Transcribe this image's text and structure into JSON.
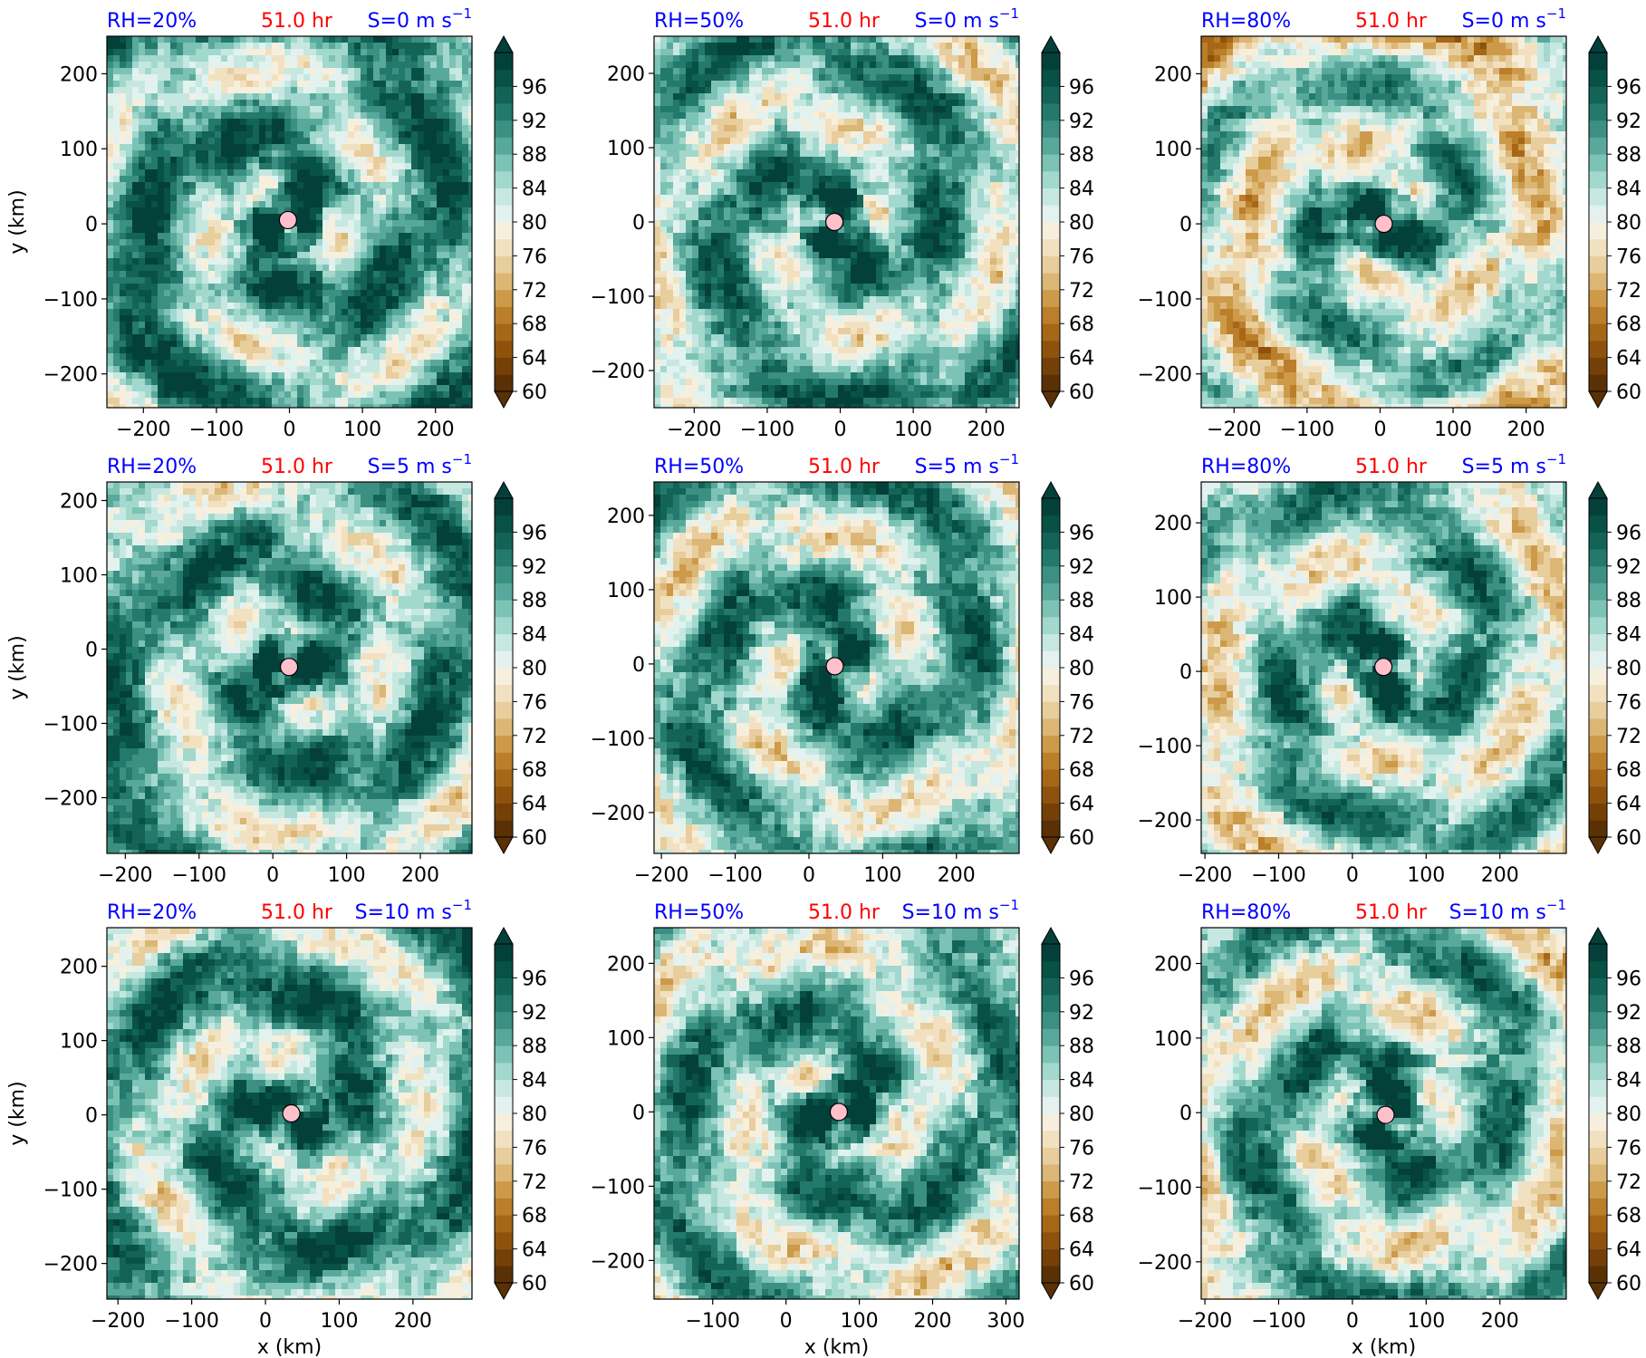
{
  "figure": {
    "cbar_ticks": [
      "96",
      "92",
      "88",
      "84",
      "80",
      "76",
      "72",
      "68",
      "64",
      "60"
    ],
    "ylabel": "y (km)",
    "xlabel": "x (km)"
  },
  "chart_data": [
    {
      "type": "heatmap",
      "rh_label": "RH=20%",
      "time_label": "51.0 hr",
      "shear_label": "S=0 m s",
      "shear_exp": "−1",
      "xlim": [
        -250,
        250
      ],
      "ylim": [
        -245,
        250
      ],
      "x_ticks": [
        -200,
        -100,
        0,
        100,
        200
      ],
      "y_ticks": [
        -200,
        -100,
        0,
        100,
        200
      ],
      "x_tick_labels": [
        "−200",
        "−100",
        "0",
        "100",
        "200"
      ],
      "y_tick_labels": [
        "−200",
        "−100",
        "0",
        "100",
        "200"
      ],
      "center": [
        -2,
        5
      ],
      "colorbar_range": [
        60,
        100
      ],
      "colorbar_step": 2
    },
    {
      "type": "heatmap",
      "rh_label": "RH=50%",
      "time_label": "51.0 hr",
      "shear_label": "S=0 m s",
      "shear_exp": "−1",
      "xlim": [
        -255,
        245
      ],
      "ylim": [
        -250,
        250
      ],
      "x_ticks": [
        -200,
        -100,
        0,
        100,
        200
      ],
      "y_ticks": [
        -200,
        -100,
        0,
        100,
        200
      ],
      "x_tick_labels": [
        "−200",
        "−100",
        "0",
        "100",
        "200"
      ],
      "y_tick_labels": [
        "−200",
        "−100",
        "0",
        "100",
        "200"
      ],
      "center": [
        -8,
        0
      ],
      "colorbar_range": [
        60,
        100
      ],
      "colorbar_step": 2
    },
    {
      "type": "heatmap",
      "rh_label": "RH=80%",
      "time_label": "51.0 hr",
      "shear_label": "S=0 m s",
      "shear_exp": "−1",
      "xlim": [
        -245,
        255
      ],
      "ylim": [
        -245,
        250
      ],
      "x_ticks": [
        -200,
        -100,
        0,
        100,
        200
      ],
      "y_ticks": [
        -200,
        -100,
        0,
        100,
        200
      ],
      "x_tick_labels": [
        "−200",
        "−100",
        "0",
        "100",
        "200"
      ],
      "y_tick_labels": [
        "−200",
        "−100",
        "0",
        "100",
        "200"
      ],
      "center": [
        5,
        0
      ],
      "colorbar_range": [
        60,
        100
      ],
      "colorbar_step": 2
    },
    {
      "type": "heatmap",
      "rh_label": "RH=20%",
      "time_label": "51.0 hr",
      "shear_label": "S=5 m s",
      "shear_exp": "−1",
      "xlim": [
        -225,
        270
      ],
      "ylim": [
        -275,
        225
      ],
      "x_ticks": [
        -200,
        -100,
        0,
        100,
        200
      ],
      "y_ticks": [
        -200,
        -100,
        0,
        100,
        200
      ],
      "x_tick_labels": [
        "−200",
        "−100",
        "0",
        "100",
        "200"
      ],
      "y_tick_labels": [
        "−200",
        "−100",
        "0",
        "100",
        "200"
      ],
      "center": [
        22,
        -24
      ],
      "colorbar_range": [
        60,
        100
      ],
      "colorbar_step": 2
    },
    {
      "type": "heatmap",
      "rh_label": "RH=50%",
      "time_label": "51.0 hr",
      "shear_label": "S=5 m s",
      "shear_exp": "−1",
      "xlim": [
        -210,
        285
      ],
      "ylim": [
        -255,
        245
      ],
      "x_ticks": [
        -200,
        -100,
        0,
        100,
        200
      ],
      "y_ticks": [
        -200,
        -100,
        0,
        100,
        200
      ],
      "x_tick_labels": [
        "−200",
        "−100",
        "0",
        "100",
        "200"
      ],
      "y_tick_labels": [
        "−200",
        "−100",
        "0",
        "100",
        "200"
      ],
      "center": [
        35,
        -3
      ],
      "colorbar_range": [
        60,
        100
      ],
      "colorbar_step": 2
    },
    {
      "type": "heatmap",
      "rh_label": "RH=80%",
      "time_label": "51.0 hr",
      "shear_label": "S=5 m s",
      "shear_exp": "−1",
      "xlim": [
        -205,
        290
      ],
      "ylim": [
        -245,
        255
      ],
      "x_ticks": [
        -200,
        -100,
        0,
        100,
        200
      ],
      "y_ticks": [
        -200,
        -100,
        0,
        100,
        200
      ],
      "x_tick_labels": [
        "−200",
        "−100",
        "0",
        "100",
        "200"
      ],
      "y_tick_labels": [
        "−200",
        "−100",
        "0",
        "100",
        "200"
      ],
      "center": [
        42,
        6
      ],
      "colorbar_range": [
        60,
        100
      ],
      "colorbar_step": 2
    },
    {
      "type": "heatmap",
      "rh_label": "RH=20%",
      "time_label": "51.0 hr",
      "shear_label": "S=10 m s",
      "shear_exp": "−1",
      "xlim": [
        -215,
        280
      ],
      "ylim": [
        -248,
        252
      ],
      "x_ticks": [
        -200,
        -100,
        0,
        100,
        200
      ],
      "y_ticks": [
        -200,
        -100,
        0,
        100,
        200
      ],
      "x_tick_labels": [
        "−200",
        "−100",
        "0",
        "100",
        "200"
      ],
      "y_tick_labels": [
        "−200",
        "−100",
        "0",
        "100",
        "200"
      ],
      "center": [
        35,
        2
      ],
      "colorbar_range": [
        60,
        100
      ],
      "colorbar_step": 2
    },
    {
      "type": "heatmap",
      "rh_label": "RH=50%",
      "time_label": "51.0 hr",
      "shear_label": "S=10 m s",
      "shear_exp": "−1",
      "xlim": [
        -180,
        318
      ],
      "ylim": [
        -252,
        248
      ],
      "x_ticks": [
        -100,
        0,
        100,
        200,
        300
      ],
      "y_ticks": [
        -200,
        -100,
        0,
        100,
        200
      ],
      "x_tick_labels": [
        "−100",
        "0",
        "100",
        "200",
        "300"
      ],
      "y_tick_labels": [
        "−200",
        "−100",
        "0",
        "100",
        "200"
      ],
      "center": [
        72,
        0
      ],
      "colorbar_range": [
        60,
        100
      ],
      "colorbar_step": 2
    },
    {
      "type": "heatmap",
      "rh_label": "RH=80%",
      "time_label": "51.0 hr",
      "shear_label": "S=10 m s",
      "shear_exp": "−1",
      "xlim": [
        -205,
        290
      ],
      "ylim": [
        -250,
        248
      ],
      "x_ticks": [
        -200,
        -100,
        0,
        100,
        200
      ],
      "y_ticks": [
        -200,
        -100,
        0,
        100,
        200
      ],
      "x_tick_labels": [
        "−200",
        "−100",
        "0",
        "100",
        "200"
      ],
      "y_tick_labels": [
        "−200",
        "−100",
        "0",
        "100",
        "200"
      ],
      "center": [
        45,
        -3
      ],
      "colorbar_range": [
        60,
        100
      ],
      "colorbar_step": 2
    }
  ]
}
